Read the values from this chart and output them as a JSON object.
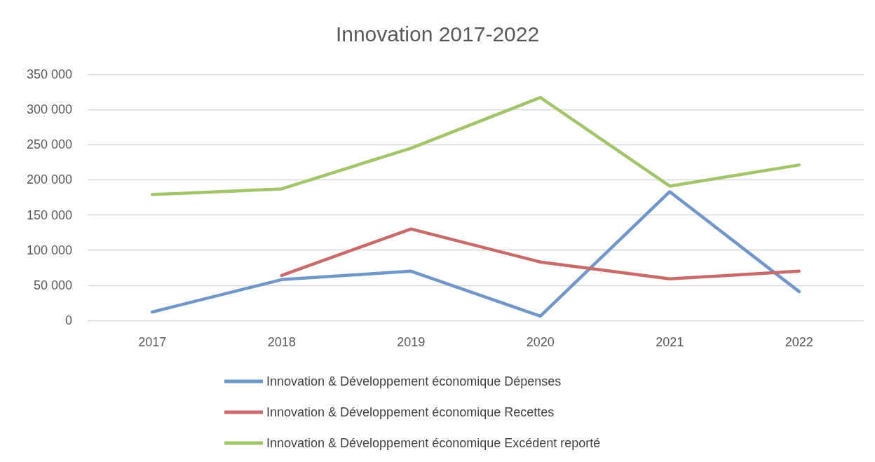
{
  "chart_data": {
    "type": "line",
    "title": "Innovation 2017-2022",
    "categories": [
      "2017",
      "2018",
      "2019",
      "2020",
      "2021",
      "2022"
    ],
    "series": [
      {
        "name": "Innovation & Développement économique Dépenses",
        "color": "#7097c8",
        "values": [
          12000,
          58000,
          70000,
          6000,
          183000,
          41000
        ]
      },
      {
        "name": "Innovation & Développement économique Recettes",
        "color": "#c96b6a",
        "values": [
          null,
          64000,
          130000,
          83000,
          59000,
          70000
        ]
      },
      {
        "name": "Innovation & Développement économique Excédent reporté",
        "color": "#a2c56b",
        "values": [
          179000,
          187000,
          245000,
          317000,
          191000,
          221000
        ]
      }
    ],
    "ylim": [
      0,
      350000
    ],
    "yticks": [
      0,
      {
        "value": 50000,
        "label": "50 000"
      },
      {
        "value": 100000,
        "label": "100 000"
      },
      {
        "value": 150000,
        "label": "150 000"
      },
      {
        "value": 200000,
        "label": "200 000"
      },
      {
        "value": 250000,
        "label": "250 000"
      },
      {
        "value": 300000,
        "label": "300 000"
      },
      {
        "value": 350000,
        "label": "350 000"
      }
    ],
    "grid": "y",
    "legend": "bottom",
    "marker": "none",
    "line_style": "solid"
  }
}
